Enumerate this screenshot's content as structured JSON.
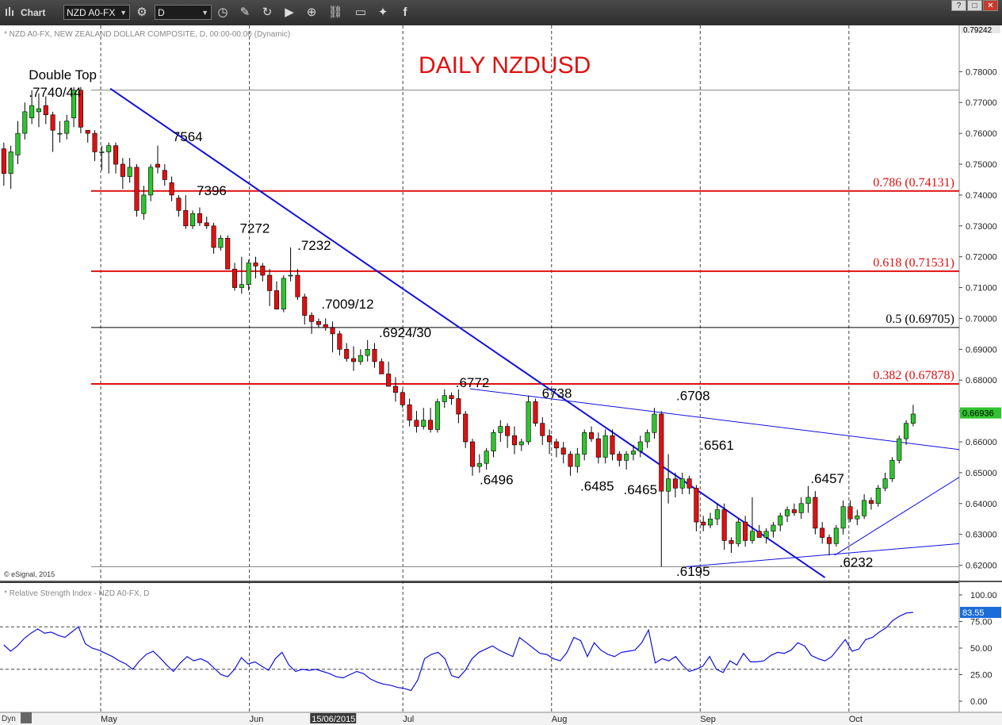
{
  "toolbar": {
    "app_label": "Chart",
    "symbol": "NZD A0-FX",
    "interval": "D",
    "window_buttons": [
      "?",
      "□",
      "✕"
    ]
  },
  "chart": {
    "title": "DAILY NZDUSD",
    "info_line": "* NZD A0-FX, NEW ZEALAND DOLLAR COMPOSITE, D, 00:00-00:00 (Dynamic)",
    "copyright": "© eSignal, 2015",
    "rsi_label": "* Relative Strength Index - NZD A0-FX, D",
    "dyn_label": "Dyn",
    "price_badge": "0.66936",
    "rsi_badge": "83.55",
    "top_price": "0.79242",
    "colors": {
      "up": "#2fc42f",
      "down": "#e01010",
      "trend": "#1010e0",
      "fib_red": "#e01010",
      "fib_black": "#000000",
      "title": "#e01010",
      "badge": "#1a6cd9"
    }
  },
  "chart_data": [
    {
      "type": "candlestick",
      "title": "DAILY NZDUSD",
      "ylim": [
        0.615,
        0.795
      ],
      "y_ticks": [
        "0.78000",
        "0.77000",
        "0.76000",
        "0.75000",
        "0.74000",
        "0.73000",
        "0.72000",
        "0.71000",
        "0.70000",
        "0.69000",
        "0.68000",
        "0.67000",
        "0.66000",
        "0.65000",
        "0.64000",
        "0.63000",
        "0.62000"
      ],
      "x_labels": [
        "May",
        "Jun",
        "15/06/2015",
        "Jul",
        "Aug",
        "Sep",
        "Oct"
      ],
      "x_label_pos": [
        0.105,
        0.26,
        0.325,
        0.42,
        0.575,
        0.73,
        0.885
      ],
      "last_price": 0.66936,
      "candles": [
        [
          0.755,
          0.757,
          0.743,
          0.747
        ],
        [
          0.747,
          0.756,
          0.742,
          0.754
        ],
        [
          0.753,
          0.764,
          0.75,
          0.76
        ],
        [
          0.76,
          0.77,
          0.758,
          0.767
        ],
        [
          0.765,
          0.774,
          0.763,
          0.769
        ],
        [
          0.767,
          0.773,
          0.762,
          0.768
        ],
        [
          0.769,
          0.772,
          0.763,
          0.766
        ],
        [
          0.766,
          0.767,
          0.754,
          0.761
        ],
        [
          0.76,
          0.764,
          0.757,
          0.76
        ],
        [
          0.76,
          0.766,
          0.758,
          0.764
        ],
        [
          0.765,
          0.775,
          0.762,
          0.774
        ],
        [
          0.774,
          0.775,
          0.76,
          0.762
        ],
        [
          0.761,
          0.761,
          0.757,
          0.76
        ],
        [
          0.76,
          0.761,
          0.751,
          0.754
        ],
        [
          0.754,
          0.756,
          0.748,
          0.754
        ],
        [
          0.754,
          0.757,
          0.747,
          0.756
        ],
        [
          0.756,
          0.757,
          0.747,
          0.75
        ],
        [
          0.75,
          0.752,
          0.742,
          0.746
        ],
        [
          0.746,
          0.752,
          0.744,
          0.749
        ],
        [
          0.749,
          0.75,
          0.733,
          0.735
        ],
        [
          0.734,
          0.743,
          0.732,
          0.74
        ],
        [
          0.74,
          0.75,
          0.738,
          0.749
        ],
        [
          0.75,
          0.756,
          0.747,
          0.749
        ],
        [
          0.748,
          0.75,
          0.743,
          0.745
        ],
        [
          0.744,
          0.746,
          0.738,
          0.74
        ],
        [
          0.739,
          0.74,
          0.733,
          0.735
        ],
        [
          0.735,
          0.74,
          0.729,
          0.73
        ],
        [
          0.73,
          0.735,
          0.729,
          0.734
        ],
        [
          0.734,
          0.736,
          0.73,
          0.731
        ],
        [
          0.731,
          0.733,
          0.729,
          0.73
        ],
        [
          0.73,
          0.731,
          0.721,
          0.723
        ],
        [
          0.723,
          0.727,
          0.722,
          0.726
        ],
        [
          0.726,
          0.727,
          0.716,
          0.716
        ],
        [
          0.716,
          0.718,
          0.709,
          0.71
        ],
        [
          0.71,
          0.72,
          0.708,
          0.711
        ],
        [
          0.711,
          0.719,
          0.709,
          0.718
        ],
        [
          0.718,
          0.72,
          0.713,
          0.717
        ],
        [
          0.717,
          0.718,
          0.712,
          0.714
        ],
        [
          0.714,
          0.716,
          0.704,
          0.709
        ],
        [
          0.709,
          0.712,
          0.703,
          0.703
        ],
        [
          0.703,
          0.714,
          0.702,
          0.713
        ],
        [
          0.714,
          0.723,
          0.712,
          0.714
        ],
        [
          0.714,
          0.716,
          0.706,
          0.707
        ],
        [
          0.707,
          0.708,
          0.698,
          0.701
        ],
        [
          0.701,
          0.702,
          0.695,
          0.699
        ],
        [
          0.699,
          0.7,
          0.697,
          0.698
        ],
        [
          0.698,
          0.7,
          0.696,
          0.697
        ],
        [
          0.697,
          0.699,
          0.689,
          0.695
        ],
        [
          0.695,
          0.696,
          0.688,
          0.69
        ],
        [
          0.69,
          0.692,
          0.686,
          0.687
        ],
        [
          0.687,
          0.691,
          0.683,
          0.686
        ],
        [
          0.686,
          0.69,
          0.685,
          0.688
        ],
        [
          0.688,
          0.693,
          0.686,
          0.69
        ],
        [
          0.69,
          0.692,
          0.684,
          0.686
        ],
        [
          0.686,
          0.687,
          0.683,
          0.682
        ],
        [
          0.682,
          0.686,
          0.678,
          0.678
        ],
        [
          0.678,
          0.681,
          0.673,
          0.676
        ],
        [
          0.676,
          0.677,
          0.671,
          0.672
        ],
        [
          0.672,
          0.674,
          0.665,
          0.667
        ],
        [
          0.667,
          0.67,
          0.663,
          0.665
        ],
        [
          0.665,
          0.671,
          0.664,
          0.667
        ],
        [
          0.667,
          0.671,
          0.663,
          0.664
        ],
        [
          0.664,
          0.674,
          0.663,
          0.673
        ],
        [
          0.673,
          0.677,
          0.671,
          0.675
        ],
        [
          0.675,
          0.676,
          0.672,
          0.674
        ],
        [
          0.674,
          0.677,
          0.666,
          0.669
        ],
        [
          0.669,
          0.67,
          0.658,
          0.66
        ],
        [
          0.66,
          0.661,
          0.649,
          0.652
        ],
        [
          0.652,
          0.656,
          0.65,
          0.653
        ],
        [
          0.653,
          0.658,
          0.651,
          0.657
        ],
        [
          0.657,
          0.664,
          0.655,
          0.663
        ],
        [
          0.663,
          0.667,
          0.66,
          0.665
        ],
        [
          0.665,
          0.666,
          0.658,
          0.662
        ],
        [
          0.662,
          0.665,
          0.656,
          0.659
        ],
        [
          0.659,
          0.661,
          0.657,
          0.66
        ],
        [
          0.66,
          0.675,
          0.659,
          0.673
        ],
        [
          0.673,
          0.674,
          0.665,
          0.666
        ],
        [
          0.666,
          0.668,
          0.659,
          0.662
        ],
        [
          0.662,
          0.664,
          0.656,
          0.66
        ],
        [
          0.66,
          0.661,
          0.655,
          0.658
        ],
        [
          0.658,
          0.66,
          0.653,
          0.656
        ],
        [
          0.656,
          0.657,
          0.649,
          0.652
        ],
        [
          0.652,
          0.658,
          0.65,
          0.656
        ],
        [
          0.656,
          0.664,
          0.654,
          0.663
        ],
        [
          0.663,
          0.665,
          0.66,
          0.661
        ],
        [
          0.661,
          0.663,
          0.653,
          0.655
        ],
        [
          0.655,
          0.664,
          0.653,
          0.662
        ],
        [
          0.662,
          0.664,
          0.654,
          0.656
        ],
        [
          0.656,
          0.657,
          0.652,
          0.654
        ],
        [
          0.654,
          0.657,
          0.651,
          0.656
        ],
        [
          0.656,
          0.659,
          0.654,
          0.657
        ],
        [
          0.657,
          0.662,
          0.655,
          0.66
        ],
        [
          0.66,
          0.664,
          0.658,
          0.663
        ],
        [
          0.663,
          0.671,
          0.661,
          0.669
        ],
        [
          0.669,
          0.67,
          0.6195,
          0.644
        ],
        [
          0.644,
          0.656,
          0.64,
          0.648
        ],
        [
          0.648,
          0.65,
          0.642,
          0.645
        ],
        [
          0.645,
          0.65,
          0.643,
          0.648
        ],
        [
          0.648,
          0.649,
          0.643,
          0.645
        ],
        [
          0.645,
          0.646,
          0.631,
          0.634
        ],
        [
          0.634,
          0.636,
          0.631,
          0.633
        ],
        [
          0.633,
          0.637,
          0.632,
          0.635
        ],
        [
          0.635,
          0.64,
          0.633,
          0.638
        ],
        [
          0.638,
          0.64,
          0.625,
          0.628
        ],
        [
          0.628,
          0.629,
          0.624,
          0.627
        ],
        [
          0.627,
          0.635,
          0.626,
          0.634
        ],
        [
          0.634,
          0.636,
          0.626,
          0.628
        ],
        [
          0.628,
          0.642,
          0.627,
          0.631
        ],
        [
          0.631,
          0.633,
          0.629,
          0.629
        ],
        [
          0.629,
          0.632,
          0.627,
          0.631
        ],
        [
          0.631,
          0.634,
          0.629,
          0.633
        ],
        [
          0.633,
          0.637,
          0.631,
          0.636
        ],
        [
          0.636,
          0.639,
          0.634,
          0.638
        ],
        [
          0.638,
          0.64,
          0.636,
          0.637
        ],
        [
          0.637,
          0.642,
          0.635,
          0.64
        ],
        [
          0.64,
          0.6457,
          0.637,
          0.642
        ],
        [
          0.642,
          0.644,
          0.63,
          0.632
        ],
        [
          0.632,
          0.634,
          0.627,
          0.629
        ],
        [
          0.629,
          0.63,
          0.6232,
          0.627
        ],
        [
          0.627,
          0.633,
          0.626,
          0.632
        ],
        [
          0.632,
          0.641,
          0.63,
          0.639
        ],
        [
          0.639,
          0.641,
          0.634,
          0.635
        ],
        [
          0.635,
          0.638,
          0.633,
          0.636
        ],
        [
          0.636,
          0.643,
          0.635,
          0.641
        ],
        [
          0.641,
          0.642,
          0.638,
          0.64
        ],
        [
          0.64,
          0.646,
          0.639,
          0.645
        ],
        [
          0.645,
          0.65,
          0.644,
          0.648
        ],
        [
          0.648,
          0.655,
          0.647,
          0.654
        ],
        [
          0.654,
          0.662,
          0.653,
          0.661
        ],
        [
          0.661,
          0.667,
          0.659,
          0.666
        ],
        [
          0.666,
          0.672,
          0.665,
          0.669
        ]
      ],
      "trendlines": [
        {
          "name": "main-downtrend",
          "from": [
            0.115,
            0.7745
          ],
          "to": [
            0.86,
            0.616
          ],
          "width": 2
        },
        {
          "name": "upper-triangle",
          "from": [
            0.49,
            0.6772
          ],
          "to": [
            1.0,
            0.6575
          ],
          "width": 1
        },
        {
          "name": "lower-triangle",
          "from": [
            0.715,
            0.6195
          ],
          "to": [
            1.0,
            0.627
          ],
          "width": 1
        },
        {
          "name": "recent-support",
          "from": [
            0.87,
            0.6232
          ],
          "to": [
            1.0,
            0.6485
          ],
          "width": 1
        }
      ],
      "levels": [
        {
          "value": 0.774,
          "label": "",
          "color": "#888888",
          "width": 1
        },
        {
          "value": 0.74131,
          "label": "0.786 (0.74131)",
          "color": "#e01010",
          "width": 2
        },
        {
          "value": 0.71531,
          "label": "0.618 (0.71531)",
          "color": "#e01010",
          "width": 2
        },
        {
          "value": 0.69705,
          "label": "0.5 (0.69705)",
          "color": "#000000",
          "width": 1
        },
        {
          "value": 0.67878,
          "label": "0.382 (0.67878)",
          "color": "#e01010",
          "width": 2
        },
        {
          "value": 0.6195,
          "label": "",
          "color": "#888888",
          "width": 1
        }
      ],
      "annotations": [
        {
          "text": "Double Top",
          "fx": 0.03,
          "price": 0.7775
        },
        {
          "text": ".7740/44",
          "fx": 0.03,
          "price": 0.7718
        },
        {
          "text": "7564",
          "fx": 0.18,
          "price": 0.7575
        },
        {
          "text": "7396",
          "fx": 0.205,
          "price": 0.74
        },
        {
          "text": "7272",
          "fx": 0.25,
          "price": 0.7277
        },
        {
          "text": ".7232",
          "fx": 0.31,
          "price": 0.7222
        },
        {
          "text": ".7009/12",
          "fx": 0.335,
          "price": 0.7032
        },
        {
          "text": ".6924/30",
          "fx": 0.395,
          "price": 0.694
        },
        {
          "text": ".6772",
          "fx": 0.475,
          "price": 0.6777
        },
        {
          "text": "6738",
          "fx": 0.565,
          "price": 0.6743
        },
        {
          "text": ".6708",
          "fx": 0.705,
          "price": 0.6735
        },
        {
          "text": ".6561",
          "fx": 0.73,
          "price": 0.6574
        },
        {
          "text": ".6496",
          "fx": 0.5,
          "price": 0.6462
        },
        {
          "text": ".6485",
          "fx": 0.605,
          "price": 0.6442
        },
        {
          "text": ".6465",
          "fx": 0.65,
          "price": 0.643
        },
        {
          "text": ".6457",
          "fx": 0.845,
          "price": 0.6466
        },
        {
          "text": ".6195",
          "fx": 0.705,
          "price": 0.6165
        },
        {
          "text": ".6232",
          "fx": 0.875,
          "price": 0.6195
        }
      ]
    },
    {
      "type": "line",
      "title": "* Relative Strength Index - NZD A0-FX, D",
      "ylim": [
        0,
        100
      ],
      "y_ticks": [
        "100.00",
        "75.00",
        "50.00",
        "25.00",
        "0.00"
      ],
      "bands": [
        30,
        70
      ],
      "values": [
        53,
        47,
        52,
        59,
        64,
        68,
        64,
        65,
        62,
        60,
        65,
        70,
        54,
        50,
        48,
        45,
        42,
        38,
        35,
        30,
        38,
        44,
        47,
        41,
        34,
        28,
        36,
        42,
        38,
        40,
        37,
        31,
        25,
        23,
        30,
        41,
        35,
        37,
        33,
        29,
        40,
        46,
        34,
        28,
        30,
        29,
        30,
        28,
        26,
        23,
        22,
        25,
        28,
        26,
        21,
        18,
        16,
        15,
        13,
        12,
        10,
        20,
        40,
        44,
        46,
        40,
        24,
        22,
        29,
        40,
        46,
        49,
        52,
        48,
        45,
        42,
        60,
        55,
        50,
        45,
        44,
        40,
        38,
        46,
        60,
        57,
        42,
        55,
        48,
        44,
        42,
        46,
        47,
        48,
        55,
        67,
        36,
        40,
        38,
        42,
        34,
        28,
        30,
        33,
        42,
        30,
        27,
        38,
        34,
        45,
        37,
        37,
        38,
        43,
        46,
        45,
        48,
        55,
        52,
        43,
        40,
        38,
        42,
        50,
        58,
        47,
        49,
        58,
        60,
        65,
        69,
        76,
        80,
        83,
        83.55
      ]
    }
  ]
}
